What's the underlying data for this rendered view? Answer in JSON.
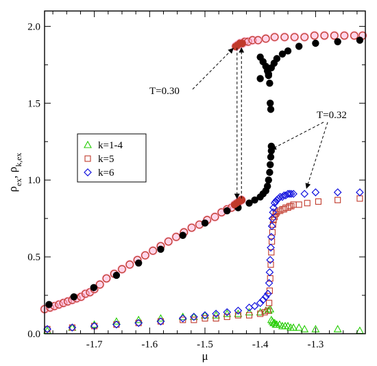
{
  "chart_data": {
    "type": "scatter",
    "xlabel": "μ",
    "ylabel": "ρ",
    "ylabel_sub": "ex",
    "ylabel_sep": ", ρ",
    "ylabel_sub2": "k,ex",
    "xlim": [
      -1.79,
      -1.21
    ],
    "ylim": [
      0.0,
      2.1
    ],
    "x_ticks": [
      -1.7,
      -1.6,
      -1.5,
      -1.4,
      -1.3
    ],
    "x_tick_labels": [
      "-1.7",
      "-1.6",
      "-1.5",
      "-1.4",
      "-1.3"
    ],
    "y_ticks": [
      0.0,
      0.5,
      1.0,
      1.5,
      2.0
    ],
    "y_tick_labels": [
      "0.0",
      "0.5",
      "1.0",
      "1.5",
      "2.0"
    ],
    "grid": false,
    "legend_placement": "left-center",
    "colors": {
      "filled_black": "#000000",
      "open_red": "#c0392b",
      "k14": "#22cc00",
      "k5": "#c0392b",
      "k6": "#1010dd",
      "halo": "#ffb3d9"
    },
    "annotations": [
      {
        "text": "T=0.30"
      },
      {
        "text": "T=0.32"
      }
    ],
    "legend": [
      {
        "label": "k=1-4",
        "marker": "triangle",
        "color": "#22cc00"
      },
      {
        "label": "k=5",
        "marker": "square",
        "color": "#c0392b"
      },
      {
        "label": "k=6",
        "marker": "diamond",
        "color": "#1010dd"
      }
    ],
    "series": [
      {
        "marker": "filled-circle",
        "color": "#000000",
        "x": [
          -1.782,
          -1.737,
          -1.701,
          -1.66,
          -1.62,
          -1.58,
          -1.54,
          -1.5,
          -1.46,
          -1.44,
          -1.42,
          -1.41,
          -1.4,
          -1.395,
          -1.39,
          -1.387,
          -1.385,
          -1.383,
          -1.382,
          -1.381,
          -1.38,
          -1.38,
          -1.381,
          -1.382,
          -1.383,
          -1.385,
          -1.387,
          -1.39,
          -1.395,
          -1.4,
          -1.4,
          -1.385,
          -1.38,
          -1.375,
          -1.37,
          -1.36,
          -1.35,
          -1.33,
          -1.3,
          -1.26,
          -1.22
        ],
        "y": [
          0.19,
          0.24,
          0.3,
          0.38,
          0.46,
          0.55,
          0.64,
          0.72,
          0.8,
          0.82,
          0.85,
          0.87,
          0.89,
          0.91,
          0.93,
          0.96,
          1.0,
          1.05,
          1.1,
          1.15,
          1.19,
          1.22,
          1.46,
          1.5,
          1.63,
          1.68,
          1.71,
          1.74,
          1.77,
          1.8,
          1.66,
          1.69,
          1.73,
          1.76,
          1.79,
          1.82,
          1.84,
          1.87,
          1.89,
          1.9,
          1.91
        ]
      },
      {
        "marker": "open-circle",
        "color": "#c0392b",
        "x": [
          -1.79,
          -1.78,
          -1.772,
          -1.764,
          -1.756,
          -1.748,
          -1.74,
          -1.732,
          -1.724,
          -1.716,
          -1.708,
          -1.7,
          -1.69,
          -1.678,
          -1.664,
          -1.65,
          -1.636,
          -1.622,
          -1.608,
          -1.594,
          -1.58,
          -1.566,
          -1.552,
          -1.538,
          -1.524,
          -1.51,
          -1.496,
          -1.482,
          -1.47,
          -1.46,
          -1.452,
          -1.446,
          -1.442,
          -1.438,
          -1.434,
          -1.444,
          -1.44,
          -1.436,
          -1.432,
          -1.428,
          -1.422,
          -1.414,
          -1.404,
          -1.39,
          -1.374,
          -1.356,
          -1.338,
          -1.32,
          -1.302,
          -1.284,
          -1.266,
          -1.248,
          -1.23,
          -1.215
        ],
        "y": [
          0.16,
          0.17,
          0.18,
          0.19,
          0.2,
          0.21,
          0.22,
          0.23,
          0.24,
          0.26,
          0.27,
          0.29,
          0.32,
          0.36,
          0.39,
          0.42,
          0.45,
          0.48,
          0.51,
          0.54,
          0.57,
          0.6,
          0.63,
          0.66,
          0.69,
          0.71,
          0.74,
          0.76,
          0.79,
          0.81,
          0.82,
          0.84,
          0.85,
          0.86,
          0.87,
          1.87,
          1.88,
          1.89,
          1.89,
          1.9,
          1.9,
          1.91,
          1.91,
          1.92,
          1.93,
          1.93,
          1.93,
          1.93,
          1.94,
          1.94,
          1.94,
          1.94,
          1.94,
          1.94
        ]
      },
      {
        "name": "k=1-4",
        "marker": "triangle",
        "color": "#22cc00",
        "x": [
          -1.785,
          -1.74,
          -1.7,
          -1.66,
          -1.62,
          -1.58,
          -1.54,
          -1.52,
          -1.5,
          -1.48,
          -1.46,
          -1.44,
          -1.42,
          -1.4,
          -1.39,
          -1.385,
          -1.382,
          -1.38,
          -1.378,
          -1.376,
          -1.374,
          -1.372,
          -1.37,
          -1.365,
          -1.36,
          -1.355,
          -1.35,
          -1.345,
          -1.34,
          -1.33,
          -1.32,
          -1.3,
          -1.26,
          -1.22
        ],
        "y": [
          0.02,
          0.04,
          0.06,
          0.08,
          0.09,
          0.1,
          0.11,
          0.11,
          0.12,
          0.12,
          0.13,
          0.13,
          0.14,
          0.14,
          0.15,
          0.15,
          0.16,
          0.09,
          0.08,
          0.07,
          0.07,
          0.06,
          0.06,
          0.06,
          0.05,
          0.05,
          0.05,
          0.04,
          0.04,
          0.04,
          0.03,
          0.03,
          0.03,
          0.02
        ]
      },
      {
        "name": "k=5",
        "marker": "square",
        "color": "#c0392b",
        "x": [
          -1.785,
          -1.74,
          -1.7,
          -1.66,
          -1.62,
          -1.58,
          -1.54,
          -1.52,
          -1.5,
          -1.48,
          -1.46,
          -1.44,
          -1.42,
          -1.4,
          -1.392,
          -1.386,
          -1.384,
          -1.383,
          -1.382,
          -1.381,
          -1.38,
          -1.379,
          -1.378,
          -1.377,
          -1.376,
          -1.374,
          -1.372,
          -1.37,
          -1.367,
          -1.364,
          -1.36,
          -1.357,
          -1.354,
          -1.35,
          -1.347,
          -1.344,
          -1.34,
          -1.33,
          -1.315,
          -1.295,
          -1.26,
          -1.22
        ],
        "y": [
          0.03,
          0.04,
          0.05,
          0.06,
          0.07,
          0.08,
          0.09,
          0.09,
          0.1,
          0.1,
          0.11,
          0.12,
          0.12,
          0.13,
          0.14,
          0.15,
          0.2,
          0.28,
          0.36,
          0.45,
          0.53,
          0.6,
          0.66,
          0.71,
          0.74,
          0.76,
          0.78,
          0.79,
          0.8,
          0.8,
          0.81,
          0.81,
          0.82,
          0.82,
          0.83,
          0.83,
          0.84,
          0.84,
          0.85,
          0.86,
          0.87,
          0.88
        ]
      },
      {
        "name": "k=6",
        "marker": "diamond",
        "color": "#1010dd",
        "x": [
          -1.785,
          -1.74,
          -1.7,
          -1.66,
          -1.62,
          -1.58,
          -1.54,
          -1.52,
          -1.5,
          -1.48,
          -1.46,
          -1.44,
          -1.42,
          -1.41,
          -1.4,
          -1.395,
          -1.39,
          -1.386,
          -1.384,
          -1.383,
          -1.382,
          -1.381,
          -1.38,
          -1.379,
          -1.378,
          -1.377,
          -1.376,
          -1.374,
          -1.372,
          -1.37,
          -1.367,
          -1.364,
          -1.36,
          -1.357,
          -1.354,
          -1.35,
          -1.347,
          -1.344,
          -1.34,
          -1.32,
          -1.3,
          -1.26,
          -1.22
        ],
        "y": [
          0.03,
          0.04,
          0.05,
          0.06,
          0.07,
          0.08,
          0.1,
          0.11,
          0.12,
          0.13,
          0.14,
          0.15,
          0.17,
          0.18,
          0.2,
          0.22,
          0.24,
          0.26,
          0.33,
          0.4,
          0.48,
          0.56,
          0.63,
          0.7,
          0.75,
          0.79,
          0.82,
          0.85,
          0.86,
          0.87,
          0.88,
          0.89,
          0.89,
          0.9,
          0.9,
          0.91,
          0.91,
          0.91,
          0.91,
          0.91,
          0.92,
          0.92,
          0.92
        ]
      }
    ]
  }
}
